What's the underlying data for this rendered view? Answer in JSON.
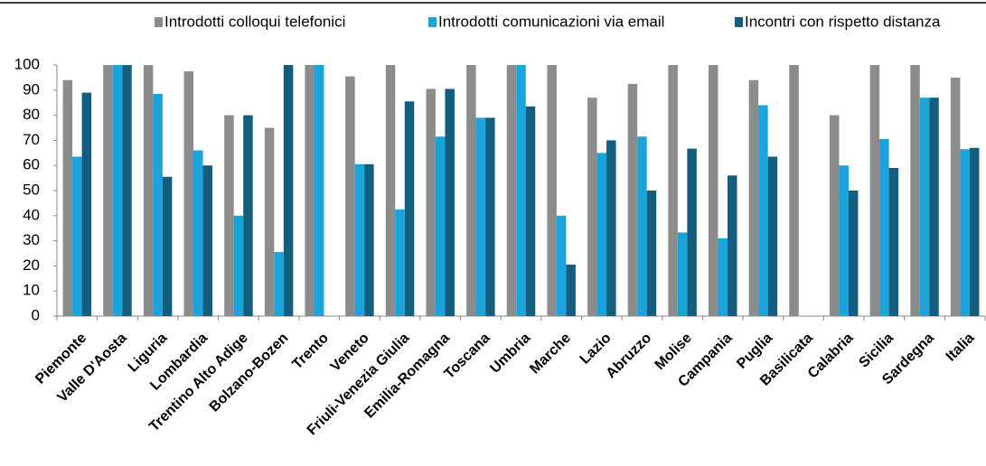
{
  "chart_data": {
    "type": "bar",
    "categories": [
      "Piemonte",
      "Valle D'Aosta",
      "Liguria",
      "Lombardia",
      "Trentino Alto Adige",
      "Bolzano-Bozen",
      "Trento",
      "Veneto",
      "Friuli-Venezia Giulia",
      "Emilia-Romagna",
      "Toscana",
      "Umbria",
      "Marche",
      "Lazio",
      "Abruzzo",
      "Molise",
      "Campania",
      "Puglia",
      "Basilicata",
      "Calabria",
      "Sicilia",
      "Sardegna",
      "Italia"
    ],
    "series": [
      {
        "name": "Introdotti colloqui telefonici",
        "color": "#8c8c8c",
        "values": [
          94,
          100,
          100,
          97.5,
          80,
          75,
          100,
          95.5,
          100,
          90.5,
          100,
          100,
          100,
          87,
          92.5,
          100,
          100,
          94,
          100,
          80,
          100,
          100,
          95
        ]
      },
      {
        "name": "Introdotti comunicazioni via email",
        "color": "#1ba3dc",
        "values": [
          63.5,
          100,
          88.5,
          66,
          40,
          25.5,
          100,
          60.5,
          42.5,
          71.5,
          79,
          100,
          40,
          65,
          71.5,
          33.3,
          31,
          84,
          0,
          60,
          70.5,
          87,
          66.5
        ]
      },
      {
        "name": "Incontri con rispetto distanza",
        "color": "#135e7e",
        "values": [
          89,
          100,
          55.5,
          60,
          80,
          100,
          0,
          60.5,
          85.5,
          90.5,
          79,
          83.5,
          20.5,
          70,
          50,
          66.7,
          56,
          63.5,
          0,
          50,
          59,
          87,
          67
        ]
      }
    ],
    "ylim": [
      0,
      100
    ],
    "yticks": [
      0,
      10,
      20,
      30,
      40,
      50,
      60,
      70,
      80,
      90,
      100
    ],
    "grid": false,
    "legend": "top"
  }
}
